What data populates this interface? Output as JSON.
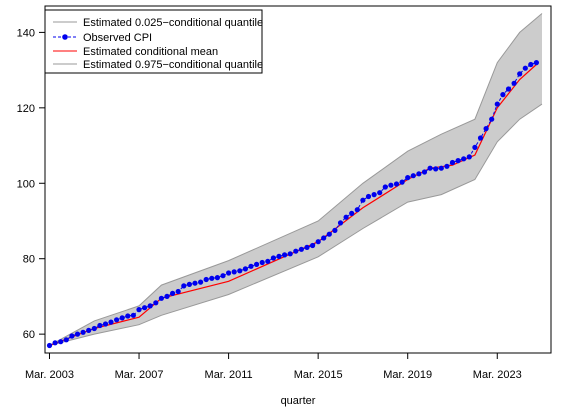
{
  "chart_data": {
    "type": "line",
    "title": "",
    "xlabel": "quarter",
    "ylabel": "",
    "xlim": [
      2002.8,
      2025.4
    ],
    "ylim": [
      55,
      147
    ],
    "x_ticks": [
      2003,
      2007,
      2011,
      2015,
      2019,
      2023
    ],
    "x_tick_labels": [
      "Mar. 2003",
      "Mar. 2007",
      "Mar. 2011",
      "Mar. 2015",
      "Mar. 2019",
      "Mar. 2023"
    ],
    "y_ticks": [
      60,
      80,
      100,
      120,
      140
    ],
    "y_tick_labels": [
      "60",
      "80",
      "100",
      "120",
      "140"
    ],
    "grid": false,
    "legend_position": "top-left",
    "legend": [
      {
        "label": "Estimated 0.025−conditional quantile",
        "style": "gray-line"
      },
      {
        "label": "Observed CPI",
        "style": "blue-dots-dashed"
      },
      {
        "label": "Estimated conditional mean",
        "style": "red-line"
      },
      {
        "label": "Estimated 0.975−conditional quantile",
        "style": "gray-line"
      }
    ],
    "colors": {
      "band_fill": "#cccccc",
      "band_edge": "#999999",
      "observed": "#0000ee",
      "mean": "#ff0000"
    },
    "band_upper_knots": {
      "x": [
        2003.0,
        2005.0,
        2007.0,
        2008.0,
        2011.0,
        2015.0,
        2017.0,
        2019.0,
        2020.5,
        2022.0,
        2023.0,
        2024.0,
        2025.0
      ],
      "y": [
        57.0,
        63.5,
        67.5,
        73.0,
        79.5,
        90.0,
        100.0,
        108.5,
        113.0,
        117.0,
        132.0,
        140.0,
        145.0
      ]
    },
    "band_lower_knots": {
      "x": [
        2003.0,
        2005.0,
        2007.0,
        2008.0,
        2011.0,
        2015.0,
        2017.0,
        2019.0,
        2020.5,
        2022.0,
        2023.0,
        2024.0,
        2025.0
      ],
      "y": [
        57.0,
        60.0,
        62.5,
        65.0,
        70.5,
        80.5,
        88.0,
        95.0,
        97.0,
        101.0,
        111.0,
        117.0,
        121.0
      ]
    },
    "series": [
      {
        "name": "Observed CPI",
        "x": [
          2003.0,
          2003.25,
          2003.5,
          2003.75,
          2004.0,
          2004.25,
          2004.5,
          2004.75,
          2005.0,
          2005.25,
          2005.5,
          2005.75,
          2006.0,
          2006.25,
          2006.5,
          2006.75,
          2007.0,
          2007.25,
          2007.5,
          2007.75,
          2008.0,
          2008.25,
          2008.5,
          2008.75,
          2009.0,
          2009.25,
          2009.5,
          2009.75,
          2010.0,
          2010.25,
          2010.5,
          2010.75,
          2011.0,
          2011.25,
          2011.5,
          2011.75,
          2012.0,
          2012.25,
          2012.5,
          2012.75,
          2013.0,
          2013.25,
          2013.5,
          2013.75,
          2014.0,
          2014.25,
          2014.5,
          2014.75,
          2015.0,
          2015.25,
          2015.5,
          2015.75,
          2016.0,
          2016.25,
          2016.5,
          2016.75,
          2017.0,
          2017.25,
          2017.5,
          2017.75,
          2018.0,
          2018.25,
          2018.5,
          2018.75,
          2019.0,
          2019.25,
          2019.5,
          2019.75,
          2020.0,
          2020.25,
          2020.5,
          2020.75,
          2021.0,
          2021.25,
          2021.5,
          2021.75,
          2022.0,
          2022.25,
          2022.5,
          2022.75,
          2023.0,
          2023.25,
          2023.5,
          2023.75,
          2024.0,
          2024.25,
          2024.5,
          2024.75
        ],
        "y": [
          57.0,
          57.7,
          58.0,
          58.5,
          59.5,
          60.0,
          60.5,
          61.0,
          61.5,
          62.3,
          62.7,
          63.2,
          63.8,
          64.3,
          64.8,
          65.0,
          66.5,
          67.0,
          67.5,
          68.3,
          69.5,
          70.0,
          70.8,
          71.3,
          72.8,
          73.2,
          73.5,
          73.8,
          74.5,
          74.8,
          75.0,
          75.5,
          76.2,
          76.5,
          76.8,
          77.3,
          78.0,
          78.5,
          79.0,
          79.3,
          80.2,
          80.6,
          81.0,
          81.3,
          82.0,
          82.5,
          83.0,
          83.5,
          84.5,
          85.5,
          86.5,
          87.5,
          89.5,
          91.0,
          92.0,
          93.0,
          95.5,
          96.5,
          97.0,
          97.5,
          99.0,
          99.5,
          99.8,
          100.3,
          101.5,
          102.0,
          102.5,
          103.0,
          104.0,
          103.8,
          104.0,
          104.5,
          105.5,
          106.0,
          106.5,
          107.0,
          109.5,
          112.0,
          114.5,
          117.0,
          121.0,
          123.5,
          125.0,
          126.5,
          129.0,
          130.5,
          131.5,
          132.0
        ]
      },
      {
        "name": "Estimated conditional mean",
        "x": [
          2003.0,
          2005.0,
          2007.0,
          2008.0,
          2011.0,
          2015.0,
          2017.0,
          2019.0,
          2020.0,
          2021.0,
          2022.0,
          2023.0,
          2024.0,
          2024.75
        ],
        "y": [
          57.0,
          61.5,
          64.5,
          69.5,
          74.0,
          84.5,
          93.5,
          101.0,
          104.0,
          104.8,
          107.5,
          120.0,
          127.5,
          131.5
        ]
      }
    ]
  }
}
